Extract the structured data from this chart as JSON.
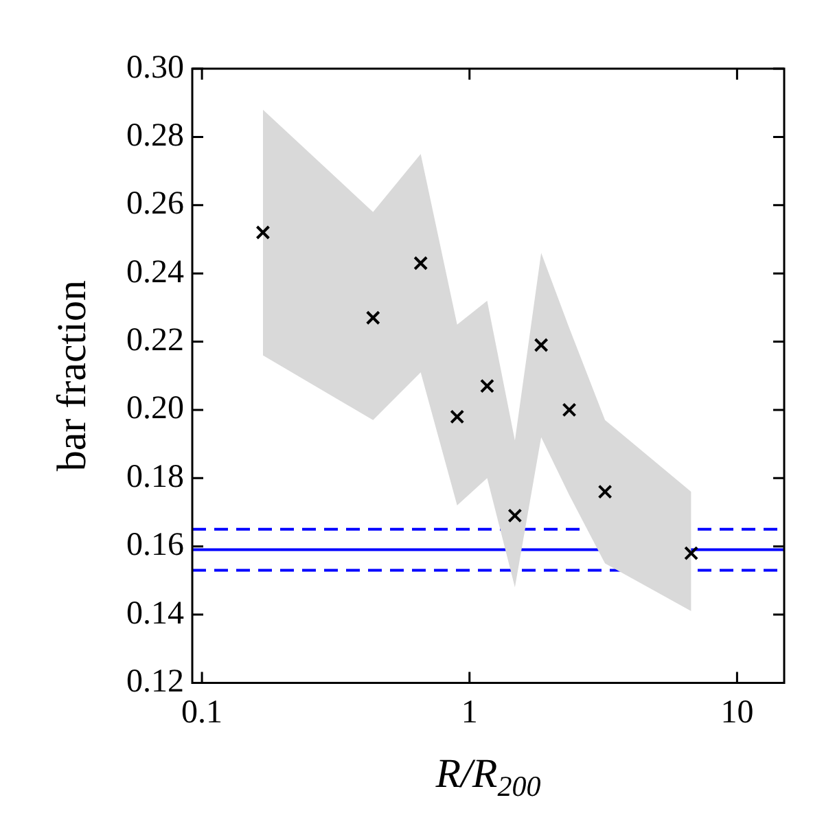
{
  "chart_data": {
    "type": "scatter",
    "xlabel": "R/R$_{200}$",
    "ylabel": "bar fraction",
    "x": [
      0.169,
      0.436,
      0.657,
      0.899,
      1.164,
      1.478,
      1.853,
      2.36,
      3.21,
      6.74
    ],
    "series": [
      {
        "color": "#000000",
        "values": [
          0.252,
          0.227,
          0.243,
          0.198,
          0.207,
          0.169,
          0.219,
          0.2,
          0.176,
          0.158
        ],
        "lower": [
          0.216,
          0.197,
          0.211,
          0.172,
          0.18,
          0.148,
          0.192,
          0.175,
          0.155,
          0.141
        ],
        "upper": [
          0.288,
          0.258,
          0.275,
          0.225,
          0.232,
          0.191,
          0.246,
          0.224,
          0.197,
          0.176
        ]
      }
    ],
    "marker": "cross",
    "log": "x",
    "grid": false,
    "legend": false,
    "xlim": [
      0.092,
      15
    ],
    "xticks": [
      0.1,
      1,
      10
    ],
    "ylim": [
      0.12,
      0.3
    ],
    "yticks": [
      0.12,
      0.14,
      0.16,
      0.18,
      {
        "value": 0.2,
        "label": "0.20"
      },
      0.22,
      0.24,
      0.26,
      0.28,
      {
        "value": 0.3,
        "label": "0.30"
      }
    ],
    "ref_lines": [
      {
        "axis": "y",
        "value": 0.159,
        "color": "#0000ff",
        "line_style": "solid"
      },
      {
        "axis": "y",
        "value": 0.165,
        "color": "#0000ff",
        "line_style": "dashed"
      },
      {
        "axis": "y",
        "value": 0.153,
        "color": "#0000ff",
        "line_style": "dashed"
      }
    ]
  }
}
